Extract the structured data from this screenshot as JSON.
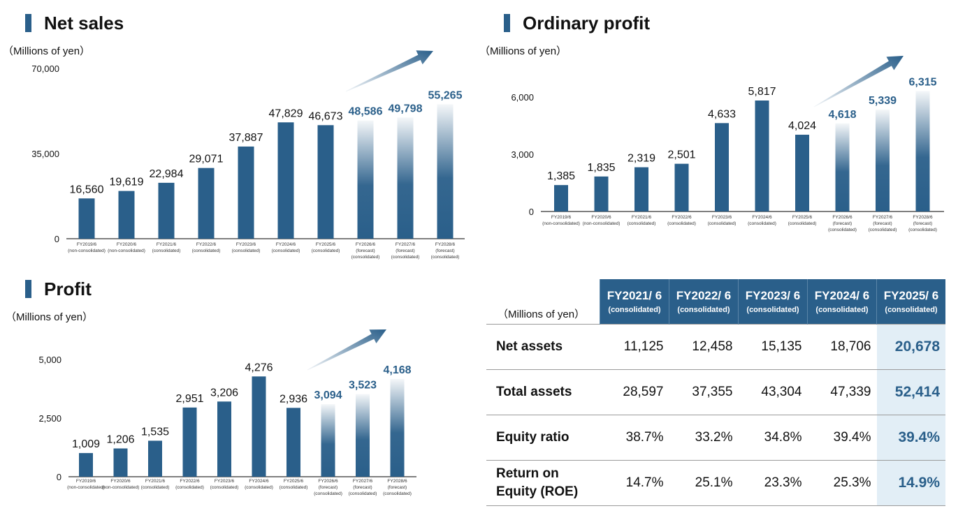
{
  "colors": {
    "bar": "#2a5f8a",
    "forecast_label": "#2a5f8a",
    "highlight_bg": "#e2eef6"
  },
  "chart_data": [
    {
      "id": "net_sales",
      "type": "bar",
      "title": "Net sales",
      "unit": "（Millions of yen）",
      "yticks": [
        "70,000",
        "35,000",
        "0"
      ],
      "ytick_values": [
        70000,
        35000,
        0
      ],
      "ylim": [
        0,
        70000
      ],
      "categories": [
        [
          "FY2019/6",
          "(non-consolidated)"
        ],
        [
          "FY2020/6",
          "(non-consolidated)"
        ],
        [
          "FY2021/6",
          "(consolidated)"
        ],
        [
          "FY2022/6",
          "(consolidated)"
        ],
        [
          "FY2023/6",
          "(consolidated)"
        ],
        [
          "FY2024/6",
          "(consolidated)"
        ],
        [
          "FY2025/6",
          "(consolidated)"
        ],
        [
          "FY2026/6",
          "(forecast)",
          "(consolidated)"
        ],
        [
          "FY2027/6",
          "(forecast)",
          "(consolidated)"
        ],
        [
          "FY2028/6",
          "(forecast)",
          "(consolidated)"
        ]
      ],
      "values": [
        16560,
        19619,
        22984,
        29071,
        37887,
        47829,
        46673,
        48586,
        49798,
        55265
      ],
      "labels": [
        "16,560",
        "19,619",
        "22,984",
        "29,071",
        "37,887",
        "47,829",
        "46,673",
        "48,586",
        "49,798",
        "55,265"
      ],
      "forecast": [
        false,
        false,
        false,
        false,
        false,
        false,
        false,
        true,
        true,
        true
      ]
    },
    {
      "id": "ordinary_profit",
      "type": "bar",
      "title": "Ordinary profit",
      "unit": "（Millions of yen）",
      "yticks": [
        "6,000",
        "3,000",
        "0"
      ],
      "ytick_values": [
        6000,
        3000,
        0
      ],
      "ylim": [
        0,
        6000
      ],
      "categories": [
        [
          "FY2019/6",
          "(non-consolidated)"
        ],
        [
          "FY2020/6",
          "(non-consolidated)"
        ],
        [
          "FY2021/6",
          "(consolidated)"
        ],
        [
          "FY2022/6",
          "(consolidated)"
        ],
        [
          "FY2023/6",
          "(consolidated)"
        ],
        [
          "FY2024/6",
          "(consolidated)"
        ],
        [
          "FY2025/6",
          "(consolidated)"
        ],
        [
          "FY2026/6",
          "(forecast)",
          "(consolidated)"
        ],
        [
          "FY2027/6",
          "(forecast)",
          "(consolidated)"
        ],
        [
          "FY2028/6",
          "(forecast)",
          "(consolidated)"
        ]
      ],
      "values": [
        1385,
        1835,
        2319,
        2501,
        4633,
        5817,
        4024,
        4618,
        5339,
        6315
      ],
      "labels": [
        "1,385",
        "1,835",
        "2,319",
        "2,501",
        "4,633",
        "5,817",
        "4,024",
        "4,618",
        "5,339",
        "6,315"
      ],
      "forecast": [
        false,
        false,
        false,
        false,
        false,
        false,
        false,
        true,
        true,
        true
      ]
    },
    {
      "id": "profit",
      "type": "bar",
      "title": "Profit",
      "unit": "（Millions of yen）",
      "yticks": [
        "5,000",
        "2,500",
        "0"
      ],
      "ytick_values": [
        5000,
        2500,
        0
      ],
      "ylim": [
        0,
        5000
      ],
      "categories": [
        [
          "FY2019/6",
          "(non-consolidated)"
        ],
        [
          "FY2020/6",
          "(non-consolidated)"
        ],
        [
          "FY2021/6",
          "(consolidated)"
        ],
        [
          "FY2022/6",
          "(consolidated)"
        ],
        [
          "FY2023/6",
          "(consolidated)"
        ],
        [
          "FY2024/6",
          "(consolidated)"
        ],
        [
          "FY2025/6",
          "(consolidated)"
        ],
        [
          "FY2026/6",
          "(forecast)",
          "(consolidated)"
        ],
        [
          "FY2027/6",
          "(forecast)",
          "(consolidated)"
        ],
        [
          "FY2028/6",
          "(forecast)",
          "(consolidated)"
        ]
      ],
      "values": [
        1009,
        1206,
        1535,
        2951,
        3206,
        4276,
        2936,
        3094,
        3523,
        4168
      ],
      "labels": [
        "1,009",
        "1,206",
        "1,535",
        "2,951",
        "3,206",
        "4,276",
        "2,936",
        "3,094",
        "3,523",
        "4,168"
      ],
      "forecast": [
        false,
        false,
        false,
        false,
        false,
        false,
        false,
        true,
        true,
        true
      ]
    },
    {
      "id": "balance_sheet",
      "type": "table",
      "unit": "（Millions of yen）",
      "columns": [
        {
          "year": "FY2021/ 6",
          "sub": "(consolidated)"
        },
        {
          "year": "FY2022/ 6",
          "sub": "(consolidated)"
        },
        {
          "year": "FY2023/ 6",
          "sub": "(consolidated)"
        },
        {
          "year": "FY2024/ 6",
          "sub": "(consolidated)"
        },
        {
          "year": "FY2025/ 6",
          "sub": "(consolidated)"
        }
      ],
      "rows": [
        {
          "label": "Net assets",
          "values": [
            "11,125",
            "12,458",
            "15,135",
            "18,706",
            "20,678"
          ]
        },
        {
          "label": "Total assets",
          "values": [
            "28,597",
            "37,355",
            "43,304",
            "47,339",
            "52,414"
          ]
        },
        {
          "label": "Equity ratio",
          "values": [
            "38.7%",
            "33.2%",
            "34.8%",
            "39.4%",
            "39.4%"
          ]
        },
        {
          "label": "Return on Equity (ROE)",
          "values": [
            "14.7%",
            "25.1%",
            "23.3%",
            "25.3%",
            "14.9%"
          ]
        }
      ]
    }
  ]
}
